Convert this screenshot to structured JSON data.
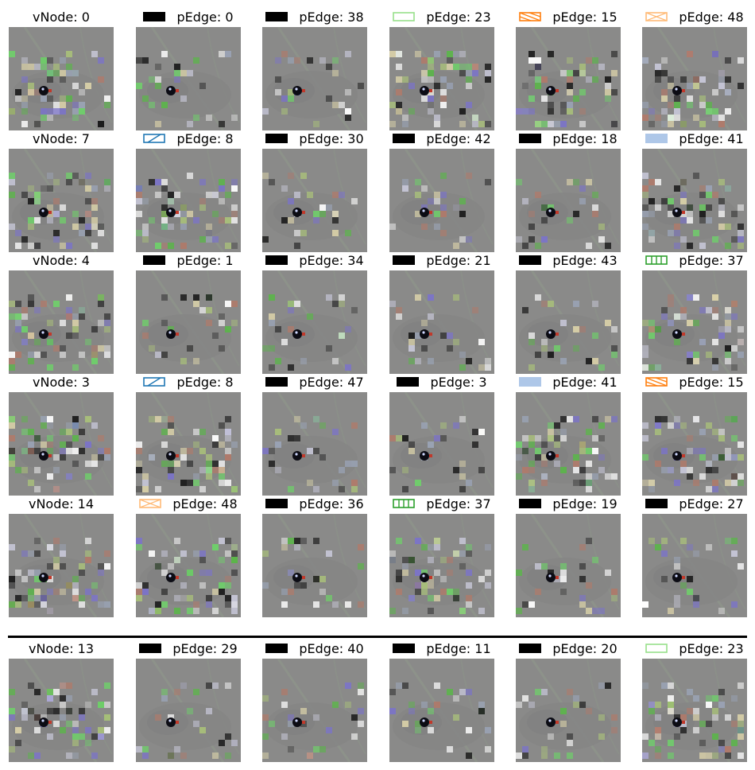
{
  "rows": [
    {
      "cells": [
        {
          "kind": "vnode",
          "label": "vNode:  0"
        },
        {
          "kind": "pedge",
          "label": "pEdge:  0",
          "swatch": {
            "style": "solid",
            "color": "#000000"
          }
        },
        {
          "kind": "pedge",
          "label": "pEdge: 38",
          "swatch": {
            "style": "solid",
            "color": "#000000"
          }
        },
        {
          "kind": "pedge",
          "label": "pEdge: 23",
          "swatch": {
            "style": "outline",
            "color": "#98df8a"
          }
        },
        {
          "kind": "pedge",
          "label": "pEdge: 15",
          "swatch": {
            "style": "backslash",
            "color": "#ff7f0e"
          }
        },
        {
          "kind": "pedge",
          "label": "pEdge: 48",
          "swatch": {
            "style": "cross",
            "color": "#ffbb78"
          }
        }
      ]
    },
    {
      "cells": [
        {
          "kind": "vnode",
          "label": "vNode:  7"
        },
        {
          "kind": "pedge",
          "label": "pEdge:  8",
          "swatch": {
            "style": "slash",
            "color": "#1f77b4"
          }
        },
        {
          "kind": "pedge",
          "label": "pEdge: 30",
          "swatch": {
            "style": "solid",
            "color": "#000000"
          }
        },
        {
          "kind": "pedge",
          "label": "pEdge: 42",
          "swatch": {
            "style": "solid",
            "color": "#000000"
          }
        },
        {
          "kind": "pedge",
          "label": "pEdge: 18",
          "swatch": {
            "style": "solid",
            "color": "#000000"
          }
        },
        {
          "kind": "pedge",
          "label": "pEdge: 41",
          "swatch": {
            "style": "fill",
            "color": "#aec7e8"
          }
        }
      ]
    },
    {
      "cells": [
        {
          "kind": "vnode",
          "label": "vNode:  4"
        },
        {
          "kind": "pedge",
          "label": "pEdge:  1",
          "swatch": {
            "style": "solid",
            "color": "#000000"
          }
        },
        {
          "kind": "pedge",
          "label": "pEdge: 34",
          "swatch": {
            "style": "solid",
            "color": "#000000"
          }
        },
        {
          "kind": "pedge",
          "label": "pEdge: 21",
          "swatch": {
            "style": "solid",
            "color": "#000000"
          }
        },
        {
          "kind": "pedge",
          "label": "pEdge: 43",
          "swatch": {
            "style": "solid",
            "color": "#000000"
          }
        },
        {
          "kind": "pedge",
          "label": "pEdge: 37",
          "swatch": {
            "style": "vbars",
            "color": "#2ca02c"
          }
        }
      ]
    },
    {
      "cells": [
        {
          "kind": "vnode",
          "label": "vNode:  3"
        },
        {
          "kind": "pedge",
          "label": "pEdge:  8",
          "swatch": {
            "style": "slash",
            "color": "#1f77b4"
          }
        },
        {
          "kind": "pedge",
          "label": "pEdge: 47",
          "swatch": {
            "style": "solid",
            "color": "#000000"
          }
        },
        {
          "kind": "pedge",
          "label": "pEdge:  3",
          "swatch": {
            "style": "solid",
            "color": "#000000"
          }
        },
        {
          "kind": "pedge",
          "label": "pEdge: 41",
          "swatch": {
            "style": "fill",
            "color": "#aec7e8"
          }
        },
        {
          "kind": "pedge",
          "label": "pEdge: 15",
          "swatch": {
            "style": "backslash",
            "color": "#ff7f0e"
          }
        }
      ]
    },
    {
      "cells": [
        {
          "kind": "vnode",
          "label": "vNode: 14"
        },
        {
          "kind": "pedge",
          "label": "pEdge: 48",
          "swatch": {
            "style": "cross",
            "color": "#ffbb78"
          }
        },
        {
          "kind": "pedge",
          "label": "pEdge: 36",
          "swatch": {
            "style": "solid",
            "color": "#000000"
          }
        },
        {
          "kind": "pedge",
          "label": "pEdge: 37",
          "swatch": {
            "style": "vbars",
            "color": "#2ca02c"
          }
        },
        {
          "kind": "pedge",
          "label": "pEdge: 19",
          "swatch": {
            "style": "solid",
            "color": "#000000"
          }
        },
        {
          "kind": "pedge",
          "label": "pEdge: 27",
          "swatch": {
            "style": "solid",
            "color": "#000000"
          }
        }
      ]
    },
    {
      "cells": [
        {
          "kind": "vnode",
          "label": "vNode: 13"
        },
        {
          "kind": "pedge",
          "label": "pEdge: 29",
          "swatch": {
            "style": "solid",
            "color": "#000000"
          }
        },
        {
          "kind": "pedge",
          "label": "pEdge: 40",
          "swatch": {
            "style": "solid",
            "color": "#000000"
          }
        },
        {
          "kind": "pedge",
          "label": "pEdge: 11",
          "swatch": {
            "style": "solid",
            "color": "#000000"
          }
        },
        {
          "kind": "pedge",
          "label": "pEdge: 20",
          "swatch": {
            "style": "solid",
            "color": "#000000"
          }
        },
        {
          "kind": "pedge",
          "label": "pEdge: 23",
          "swatch": {
            "style": "outline",
            "color": "#98df8a"
          }
        }
      ]
    }
  ]
}
